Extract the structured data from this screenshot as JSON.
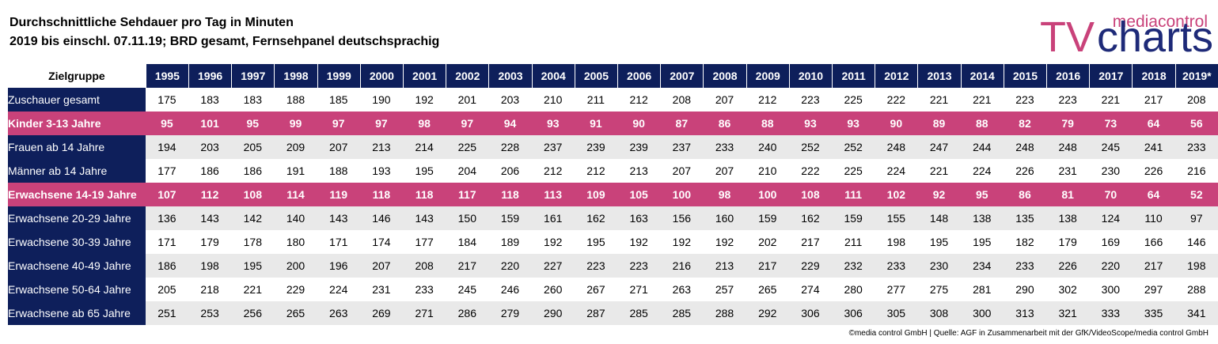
{
  "header": {
    "title": "Durchschnittliche Sehdauer pro Tag in Minuten",
    "subtitle": "2019 bis einschl. 07.11.19; BRD gesamt, Fernsehpanel deutschsprachig"
  },
  "logo": {
    "top_text": "mediacontrol",
    "tv_text": "TV",
    "charts_text": "charts"
  },
  "footer": {
    "credit": "©media control GmbH | Quelle: AGF in Zusammenarbeit mit der GfK/VideoScope/media control GmbH"
  },
  "colors": {
    "navy": "#0e1f5b",
    "pink": "#c9427a",
    "stripe": "#e9e9e9"
  },
  "chart_data": {
    "type": "table",
    "row_header_label": "Zielgruppe",
    "columns": [
      "1995",
      "1996",
      "1997",
      "1998",
      "1999",
      "2000",
      "2001",
      "2002",
      "2003",
      "2004",
      "2005",
      "2006",
      "2007",
      "2008",
      "2009",
      "2010",
      "2011",
      "2012",
      "2013",
      "2014",
      "2015",
      "2016",
      "2017",
      "2018",
      "2019*"
    ],
    "rows": [
      {
        "label": "Zuschauer gesamt",
        "highlight": false,
        "values": [
          175,
          183,
          183,
          188,
          185,
          190,
          192,
          201,
          203,
          210,
          211,
          212,
          208,
          207,
          212,
          223,
          225,
          222,
          221,
          221,
          223,
          223,
          221,
          217,
          208
        ]
      },
      {
        "label": "Kinder 3-13 Jahre",
        "highlight": true,
        "values": [
          95,
          101,
          95,
          99,
          97,
          97,
          98,
          97,
          94,
          93,
          91,
          90,
          87,
          86,
          88,
          93,
          93,
          90,
          89,
          88,
          82,
          79,
          73,
          64,
          56
        ]
      },
      {
        "label": "Frauen ab 14 Jahre",
        "highlight": false,
        "values": [
          194,
          203,
          205,
          209,
          207,
          213,
          214,
          225,
          228,
          237,
          239,
          239,
          237,
          233,
          240,
          252,
          252,
          248,
          247,
          244,
          248,
          248,
          245,
          241,
          233
        ]
      },
      {
        "label": "Männer ab 14 Jahre",
        "highlight": false,
        "values": [
          177,
          186,
          186,
          191,
          188,
          193,
          195,
          204,
          206,
          212,
          212,
          213,
          207,
          207,
          210,
          222,
          225,
          224,
          221,
          224,
          226,
          231,
          230,
          226,
          216
        ]
      },
      {
        "label": "Erwachsene 14-19 Jahre",
        "highlight": true,
        "values": [
          107,
          112,
          108,
          114,
          119,
          118,
          118,
          117,
          118,
          113,
          109,
          105,
          100,
          98,
          100,
          108,
          111,
          102,
          92,
          95,
          86,
          81,
          70,
          64,
          52
        ]
      },
      {
        "label": "Erwachsene 20-29 Jahre",
        "highlight": false,
        "values": [
          136,
          143,
          142,
          140,
          143,
          146,
          143,
          150,
          159,
          161,
          162,
          163,
          156,
          160,
          159,
          162,
          159,
          155,
          148,
          138,
          135,
          138,
          124,
          110,
          97
        ]
      },
      {
        "label": "Erwachsene 30-39 Jahre",
        "highlight": false,
        "values": [
          171,
          179,
          178,
          180,
          171,
          174,
          177,
          184,
          189,
          192,
          195,
          192,
          192,
          192,
          202,
          217,
          211,
          198,
          195,
          195,
          182,
          179,
          169,
          166,
          146
        ]
      },
      {
        "label": "Erwachsene 40-49 Jahre",
        "highlight": false,
        "values": [
          186,
          198,
          195,
          200,
          196,
          207,
          208,
          217,
          220,
          227,
          223,
          223,
          216,
          213,
          217,
          229,
          232,
          233,
          230,
          234,
          233,
          226,
          220,
          217,
          198
        ]
      },
      {
        "label": "Erwachsene 50-64 Jahre",
        "highlight": false,
        "values": [
          205,
          218,
          221,
          229,
          224,
          231,
          233,
          245,
          246,
          260,
          267,
          271,
          263,
          257,
          265,
          274,
          280,
          277,
          275,
          281,
          290,
          302,
          300,
          297,
          288
        ]
      },
      {
        "label": "Erwachsene ab 65 Jahre",
        "highlight": false,
        "values": [
          251,
          253,
          256,
          265,
          263,
          269,
          271,
          286,
          279,
          290,
          287,
          285,
          285,
          288,
          292,
          306,
          306,
          305,
          308,
          300,
          313,
          321,
          333,
          335,
          341
        ]
      }
    ]
  }
}
